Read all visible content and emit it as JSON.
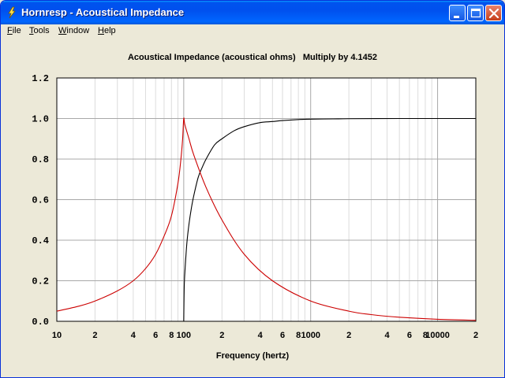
{
  "window": {
    "title": "Hornresp - Acoustical Impedance"
  },
  "menu": [
    {
      "first": "F",
      "rest": "ile"
    },
    {
      "first": "T",
      "rest": "ools"
    },
    {
      "first": "W",
      "rest": "indow"
    },
    {
      "first": "H",
      "rest": "elp"
    }
  ],
  "icons": {
    "app": "lightning-icon",
    "minimize": "minimize-icon",
    "maximize": "maximize-icon",
    "close": "close-icon"
  },
  "chart_data": {
    "type": "line",
    "title": "Acoustical Impedance (acoustical ohms)   Multiply by 4.1452",
    "xlabel": "Frequency (hertz)",
    "ylabel": "",
    "x_scale": "log",
    "xlim": [
      10,
      20000
    ],
    "ylim": [
      0,
      1.2
    ],
    "grid": true,
    "y_ticks": [
      "0.0",
      "0.2",
      "0.4",
      "0.6",
      "0.8",
      "1.0",
      "1.2"
    ],
    "x_ticks": [
      {
        "value": 10,
        "label": "10"
      },
      {
        "value": 20,
        "label": "2"
      },
      {
        "value": 40,
        "label": "4"
      },
      {
        "value": 60,
        "label": "6"
      },
      {
        "value": 80,
        "label": "8"
      },
      {
        "value": 100,
        "label": "100"
      },
      {
        "value": 200,
        "label": "2"
      },
      {
        "value": 400,
        "label": "4"
      },
      {
        "value": 600,
        "label": "6"
      },
      {
        "value": 800,
        "label": "8"
      },
      {
        "value": 1000,
        "label": "1000"
      },
      {
        "value": 2000,
        "label": "2"
      },
      {
        "value": 4000,
        "label": "4"
      },
      {
        "value": 6000,
        "label": "6"
      },
      {
        "value": 8000,
        "label": "8"
      },
      {
        "value": 10000,
        "label": "10000"
      },
      {
        "value": 20000,
        "label": "2"
      }
    ],
    "series": [
      {
        "color": "#000000",
        "x": [
          100,
          101,
          103,
          106,
          110,
          115,
          120,
          130,
          140,
          150,
          175,
          200,
          250,
          300,
          400,
          500,
          600,
          800,
          1000,
          1500,
          2000,
          5000,
          10000,
          20000
        ],
        "y": [
          0.0,
          0.18,
          0.28,
          0.39,
          0.48,
          0.56,
          0.62,
          0.71,
          0.76,
          0.8,
          0.87,
          0.9,
          0.94,
          0.96,
          0.98,
          0.985,
          0.99,
          0.995,
          0.997,
          0.998,
          0.999,
          1.0,
          1.0,
          1.0
        ]
      },
      {
        "color": "#cc0000",
        "x": [
          10,
          15,
          20,
          30,
          40,
          50,
          60,
          70,
          80,
          90,
          95,
          98,
          100,
          102,
          110,
          120,
          150,
          200,
          300,
          500,
          1000,
          2000,
          3000,
          5000,
          10000,
          20000
        ],
        "y": [
          0.05,
          0.075,
          0.1,
          0.15,
          0.2,
          0.26,
          0.33,
          0.42,
          0.52,
          0.68,
          0.8,
          0.9,
          1.0,
          0.97,
          0.9,
          0.82,
          0.66,
          0.5,
          0.33,
          0.2,
          0.1,
          0.05,
          0.033,
          0.02,
          0.01,
          0.005
        ]
      }
    ]
  }
}
